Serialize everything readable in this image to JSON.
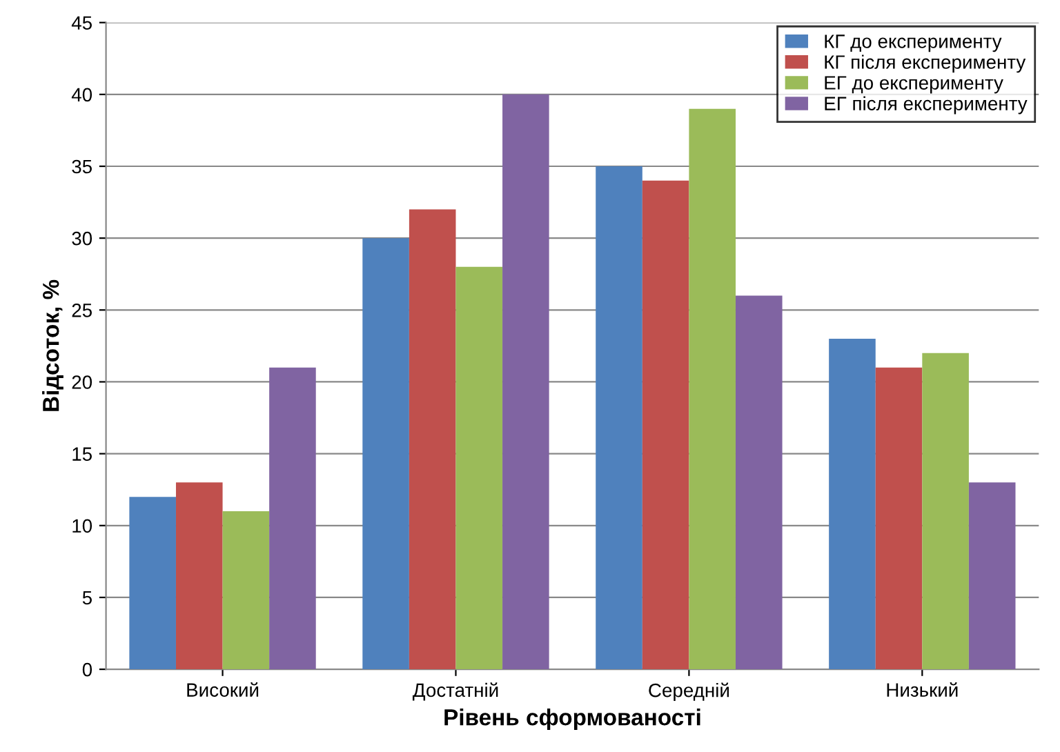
{
  "chart_data": {
    "type": "bar",
    "xlabel": "Рівень сформованості",
    "ylabel": "Відсоток, %",
    "categories": [
      "Високий",
      "Достатній",
      "Середній",
      "Низький"
    ],
    "series": [
      {
        "name": "КГ до експерименту",
        "color": "#4f81bd",
        "values": [
          12,
          30,
          35,
          23
        ]
      },
      {
        "name": "КГ після експерименту",
        "color": "#c0504d",
        "values": [
          13,
          32,
          34,
          21
        ]
      },
      {
        "name": "ЕГ до експерименту",
        "color": "#9bbb59",
        "values": [
          11,
          28,
          39,
          22
        ]
      },
      {
        "name": "ЕГ після експерименту",
        "color": "#8064a2",
        "values": [
          21,
          40,
          26,
          13
        ]
      }
    ],
    "ylim": [
      0,
      45
    ],
    "yticks": [
      0,
      5,
      10,
      15,
      20,
      25,
      30,
      35,
      40,
      45
    ],
    "grid": "y",
    "legend": "top right"
  }
}
